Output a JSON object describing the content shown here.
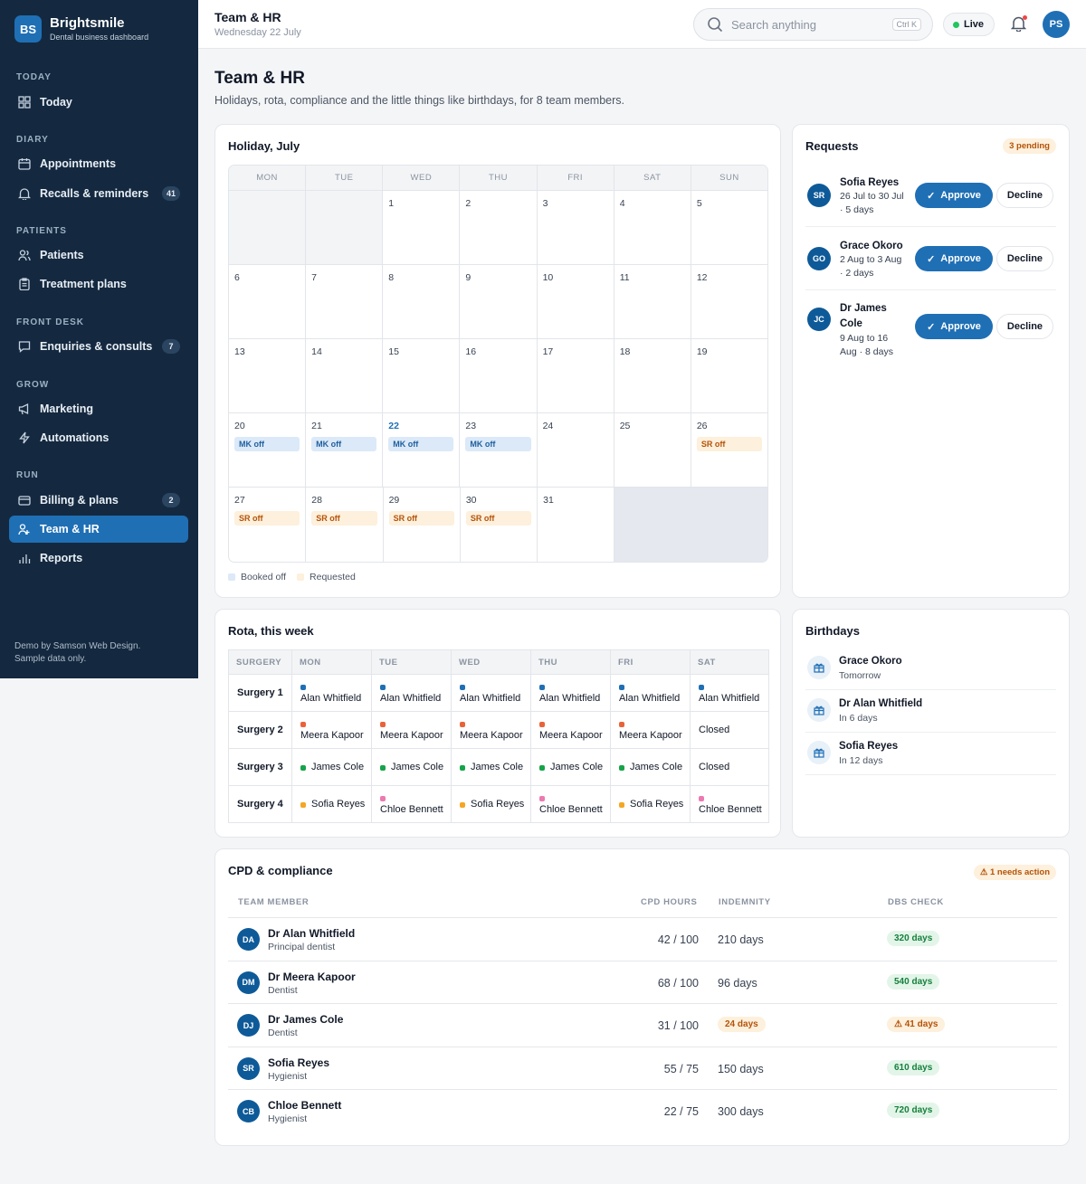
{
  "brand": {
    "initials": "BS",
    "name": "Brightsmile",
    "subtitle": "Dental business dashboard"
  },
  "sidebar": {
    "sections": [
      "TODAY",
      "DIARY",
      "PATIENTS",
      "FRONT DESK",
      "GROW",
      "RUN"
    ],
    "items": [
      {
        "label": "Today",
        "icon": "grid-icon"
      },
      {
        "label": "Appointments",
        "icon": "calendar-icon"
      },
      {
        "label": "Recalls & reminders",
        "icon": "bell-icon",
        "badge": "41"
      },
      {
        "label": "Patients",
        "icon": "users-icon"
      },
      {
        "label": "Treatment plans",
        "icon": "clipboard-icon"
      },
      {
        "label": "Enquiries & consults",
        "icon": "chat-icon",
        "badge": "7"
      },
      {
        "label": "Marketing",
        "icon": "megaphone-icon"
      },
      {
        "label": "Automations",
        "icon": "bolt-icon"
      },
      {
        "label": "Billing & plans",
        "icon": "card-icon",
        "badge": "2"
      },
      {
        "label": "Team & HR",
        "icon": "team-icon",
        "active": true
      },
      {
        "label": "Reports",
        "icon": "bar-chart-icon"
      }
    ],
    "footer_line1": "Demo by Samson Web Design.",
    "footer_line2": "Sample data only."
  },
  "header": {
    "title": "Team & HR",
    "date": "Wednesday 22 July",
    "search_placeholder": "Search anything",
    "shortcut": "Ctrl K",
    "live_label": "Live",
    "user_initials": "PS"
  },
  "page": {
    "title": "Team & HR",
    "subtitle": "Holidays, rota, compliance and the little things like birthdays, for 8 team members."
  },
  "holiday": {
    "title": "Holiday, July",
    "weekdays": [
      "MON",
      "TUE",
      "WED",
      "THU",
      "FRI",
      "SAT",
      "SUN"
    ],
    "weeks": [
      [
        null,
        null,
        {
          "d": "1"
        },
        {
          "d": "2"
        },
        {
          "d": "3"
        },
        {
          "d": "4"
        },
        {
          "d": "5"
        }
      ],
      [
        {
          "d": "6"
        },
        {
          "d": "7"
        },
        {
          "d": "8"
        },
        {
          "d": "9"
        },
        {
          "d": "10"
        },
        {
          "d": "11"
        },
        {
          "d": "12"
        }
      ],
      [
        {
          "d": "13"
        },
        {
          "d": "14"
        },
        {
          "d": "15"
        },
        {
          "d": "16"
        },
        {
          "d": "17"
        },
        {
          "d": "18"
        },
        {
          "d": "19"
        }
      ],
      [
        {
          "d": "20",
          "chip": "MK off",
          "kind": "booked"
        },
        {
          "d": "21",
          "chip": "MK off",
          "kind": "booked"
        },
        {
          "d": "22",
          "today": true,
          "chip": "MK off",
          "kind": "booked"
        },
        {
          "d": "23",
          "chip": "MK off",
          "kind": "booked"
        },
        {
          "d": "24"
        },
        {
          "d": "25"
        },
        {
          "d": "26",
          "chip": "SR off",
          "kind": "req"
        }
      ],
      [
        {
          "d": "27",
          "chip": "SR off",
          "kind": "req"
        },
        {
          "d": "28",
          "chip": "SR off",
          "kind": "req"
        },
        {
          "d": "29",
          "chip": "SR off",
          "kind": "req"
        },
        {
          "d": "30",
          "chip": "SR off",
          "kind": "req"
        },
        {
          "d": "31"
        },
        "fill"
      ]
    ],
    "legend_booked": "Booked off",
    "legend_requested": "Requested",
    "colors": {
      "booked": "#dbe9f8",
      "requested": "#fdf0dc"
    }
  },
  "requests": {
    "title": "Requests",
    "pending": "3 pending",
    "approve_label": "Approve",
    "decline_label": "Decline",
    "items": [
      {
        "initials": "SR",
        "name": "Sofia Reyes",
        "dates": "26 Jul to 30 Jul · 5 days"
      },
      {
        "initials": "GO",
        "name": "Grace Okoro",
        "dates": "2 Aug to 3 Aug · 2 days"
      },
      {
        "initials": "JC",
        "name": "Dr James Cole",
        "dates": "9 Aug to 16 Aug · 8 days"
      }
    ]
  },
  "rota": {
    "title": "Rota, this week",
    "columns": [
      "SURGERY",
      "MON",
      "TUE",
      "WED",
      "THU",
      "FRI",
      "SAT"
    ],
    "rows": [
      {
        "surgery": "Surgery 1",
        "cells": [
          [
            "Alan Whitfield",
            "#1f6fb5"
          ],
          [
            "Alan Whitfield",
            "#1f6fb5"
          ],
          [
            "Alan Whitfield",
            "#1f6fb5"
          ],
          [
            "Alan Whitfield",
            "#1f6fb5"
          ],
          [
            "Alan Whitfield",
            "#1f6fb5"
          ],
          [
            "Alan Whitfield",
            "#1f6fb5"
          ]
        ]
      },
      {
        "surgery": "Surgery 2",
        "cells": [
          [
            "Meera Kapoor",
            "#e8633a"
          ],
          [
            "Meera Kapoor",
            "#e8633a"
          ],
          [
            "Meera Kapoor",
            "#e8633a"
          ],
          [
            "Meera Kapoor",
            "#e8633a"
          ],
          [
            "Meera Kapoor",
            "#e8633a"
          ],
          [
            "Closed",
            ""
          ]
        ]
      },
      {
        "surgery": "Surgery 3",
        "cells": [
          [
            "James Cole",
            "#16a34a"
          ],
          [
            "James Cole",
            "#16a34a"
          ],
          [
            "James Cole",
            "#16a34a"
          ],
          [
            "James Cole",
            "#16a34a"
          ],
          [
            "James Cole",
            "#16a34a"
          ],
          [
            "Closed",
            ""
          ]
        ]
      },
      {
        "surgery": "Surgery 4",
        "cells": [
          [
            "Sofia Reyes",
            "#f5a623"
          ],
          [
            "Chloe Bennett",
            "#ec7ab0"
          ],
          [
            "Sofia Reyes",
            "#f5a623"
          ],
          [
            "Chloe Bennett",
            "#ec7ab0"
          ],
          [
            "Sofia Reyes",
            "#f5a623"
          ],
          [
            "Chloe Bennett",
            "#ec7ab0"
          ]
        ]
      }
    ]
  },
  "birthdays": {
    "title": "Birthdays",
    "items": [
      {
        "name": "Grace Okoro",
        "when": "Tomorrow"
      },
      {
        "name": "Dr Alan Whitfield",
        "when": "In 6 days"
      },
      {
        "name": "Sofia Reyes",
        "when": "In 12 days"
      }
    ]
  },
  "cpd": {
    "title": "CPD & compliance",
    "needs_action": "1 needs action",
    "columns": {
      "member": "TEAM MEMBER",
      "hours": "CPD HOURS",
      "indemnity": "INDEMNITY",
      "dbs": "DBS CHECK"
    },
    "rows": [
      {
        "initials": "DA",
        "name": "Dr Alan Whitfield",
        "role": "Principal dentist",
        "hours": "42 / 100",
        "indemnity": "210 days",
        "indemnity_warn": false,
        "dbs": "320 days",
        "dbs_warn": false
      },
      {
        "initials": "DM",
        "name": "Dr Meera Kapoor",
        "role": "Dentist",
        "hours": "68 / 100",
        "indemnity": "96 days",
        "indemnity_warn": false,
        "dbs": "540 days",
        "dbs_warn": false
      },
      {
        "initials": "DJ",
        "name": "Dr James Cole",
        "role": "Dentist",
        "hours": "31 / 100",
        "indemnity": "24 days",
        "indemnity_warn": true,
        "dbs": "41 days",
        "dbs_warn": true
      },
      {
        "initials": "SR",
        "name": "Sofia Reyes",
        "role": "Hygienist",
        "hours": "55 / 75",
        "indemnity": "150 days",
        "indemnity_warn": false,
        "dbs": "610 days",
        "dbs_warn": false
      },
      {
        "initials": "CB",
        "name": "Chloe Bennett",
        "role": "Hygienist",
        "hours": "22 / 75",
        "indemnity": "300 days",
        "indemnity_warn": false,
        "dbs": "720 days",
        "dbs_warn": false
      }
    ]
  }
}
